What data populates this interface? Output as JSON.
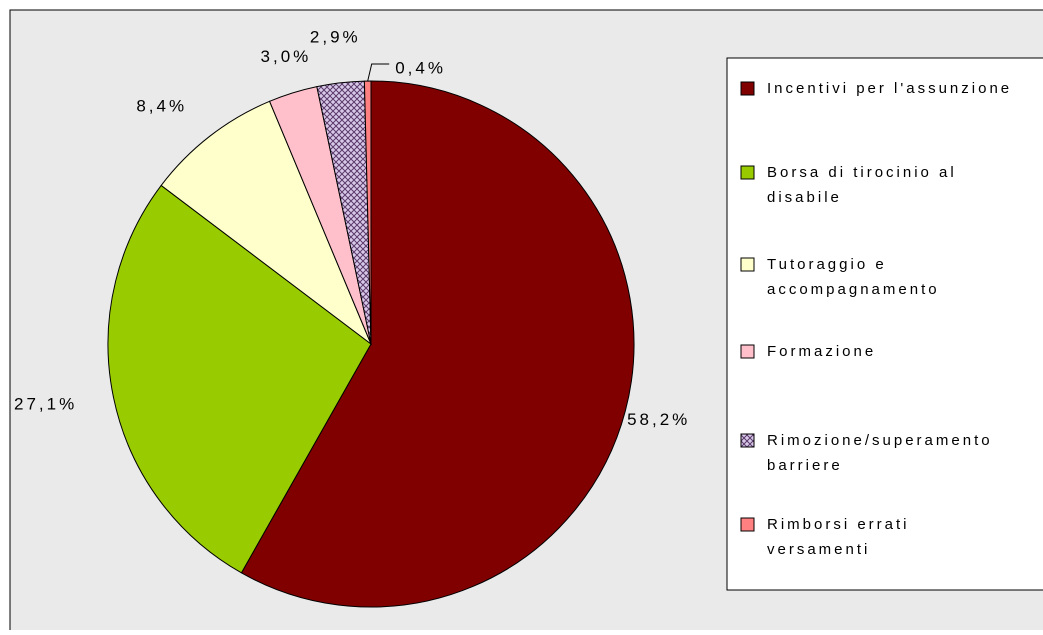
{
  "chart_data": {
    "type": "pie",
    "slices": [
      {
        "label": "Incentivi per l'assunzione",
        "value": 58.2,
        "value_label": "58,2%",
        "color": "#800000",
        "pattern": null
      },
      {
        "label": "Borsa di tirocinio al disabile",
        "value": 27.1,
        "value_label": "27,1%",
        "color": "#99CC00",
        "pattern": null
      },
      {
        "label": "Tutoraggio e accompagnamento",
        "value": 8.4,
        "value_label": "8,4%",
        "color": "#FFFFCC",
        "pattern": null
      },
      {
        "label": "Formazione",
        "value": 3.0,
        "value_label": "3,0%",
        "color": "#FFC0CB",
        "pattern": null
      },
      {
        "label": "Rimozione/superamento barriere",
        "value": 2.9,
        "value_label": "2,9%",
        "color": "#D8C8E8",
        "pattern": "crosshatch"
      },
      {
        "label": "Rimborsi errati versamenti",
        "value": 0.4,
        "value_label": "0,4%",
        "color": "#FF8080",
        "pattern": null
      }
    ],
    "legend_position": "right",
    "background": "#EAEAEA",
    "start_angle": "12 o'clock",
    "direction": "clockwise"
  }
}
